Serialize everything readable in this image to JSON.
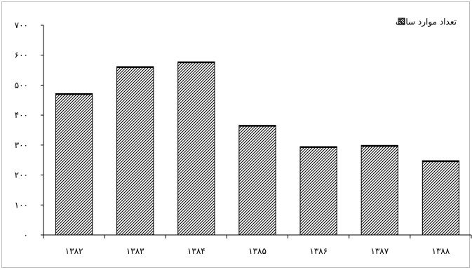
{
  "chart_data": {
    "type": "bar",
    "categories": [
      "۱۳۸۲",
      "۱۳۸۳",
      "۱۳۸۴",
      "۱۳۸۵",
      "۱۳۸۶",
      "۱۳۸۷",
      "۱۳۸۸"
    ],
    "series": [
      {
        "name": "تعداد موارد سالک",
        "values": [
          472,
          562,
          578,
          366,
          295,
          299,
          248
        ]
      }
    ],
    "y_ticks": [
      "۰",
      "۱۰۰",
      "۲۰۰",
      "۳۰۰",
      "۴۰۰",
      "۵۰۰",
      "۶۰۰",
      "۷۰۰"
    ],
    "ylim": [
      0,
      700
    ],
    "xlabel": "",
    "ylabel": "",
    "title": "",
    "grid": false,
    "legend_position": "top-right",
    "bar_pattern": "diagonal-hatch",
    "colors": {
      "bar_fill": "#ffffff",
      "bar_hatch": "#000000",
      "axis": "#000000"
    }
  }
}
